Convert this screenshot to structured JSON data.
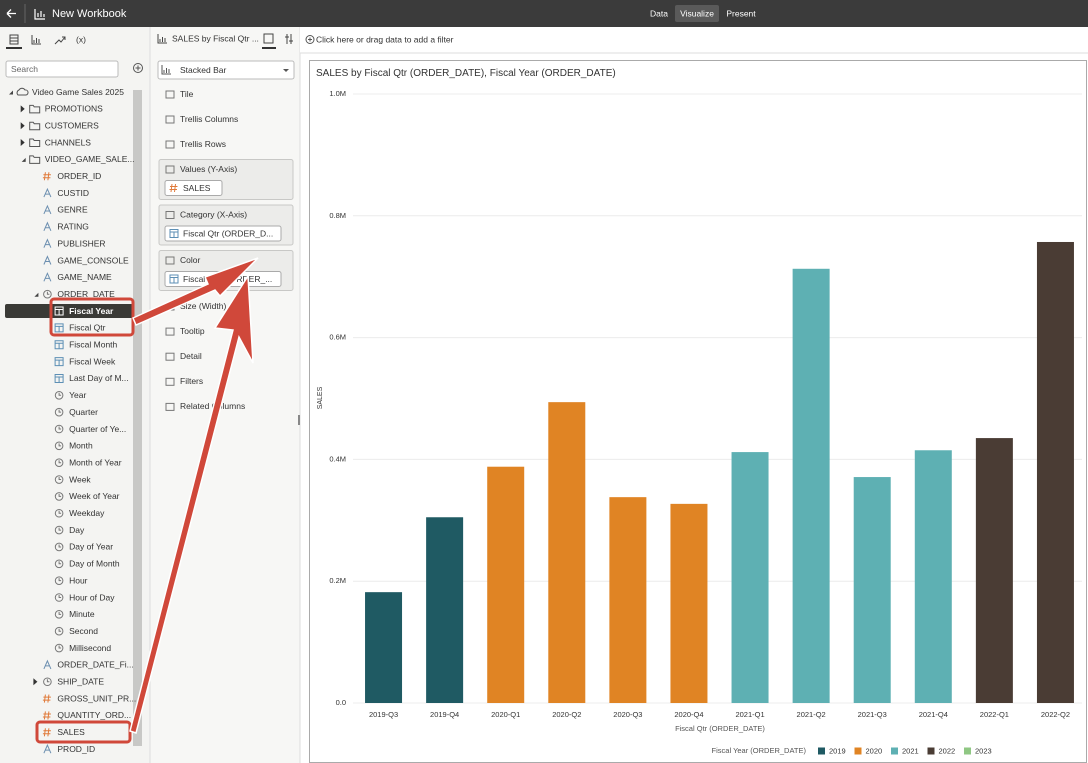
{
  "header": {
    "title": "New Workbook",
    "tabs": [
      "Data",
      "Visualize",
      "Present"
    ],
    "active_tab": 1
  },
  "data_panel": {
    "function_tab": "(x)",
    "search_placeholder": "Search",
    "tree": [
      {
        "label": "Video Game Sales 2025",
        "level": 0,
        "icon": "subject-area",
        "state": "expanded"
      },
      {
        "label": "PROMOTIONS",
        "level": 1,
        "icon": "folder",
        "state": "collapsed"
      },
      {
        "label": "CUSTOMERS",
        "level": 1,
        "icon": "folder",
        "state": "collapsed"
      },
      {
        "label": "CHANNELS",
        "level": 1,
        "icon": "folder",
        "state": "collapsed"
      },
      {
        "label": "VIDEO_GAME_SALE...",
        "level": 1,
        "icon": "folder",
        "state": "expanded"
      },
      {
        "label": "ORDER_ID",
        "level": 2,
        "icon": "measure"
      },
      {
        "label": "CUSTID",
        "level": 2,
        "icon": "attribute"
      },
      {
        "label": "GENRE",
        "level": 2,
        "icon": "attribute"
      },
      {
        "label": "RATING",
        "level": 2,
        "icon": "attribute"
      },
      {
        "label": "PUBLISHER",
        "level": 2,
        "icon": "attribute"
      },
      {
        "label": "GAME_CONSOLE",
        "level": 2,
        "icon": "attribute"
      },
      {
        "label": "GAME_NAME",
        "level": 2,
        "icon": "attribute"
      },
      {
        "label": "ORDER_DATE",
        "level": 2,
        "icon": "time",
        "state": "expanded"
      },
      {
        "label": "Fiscal Year",
        "level": 3,
        "icon": "hierarchy",
        "selected": true,
        "highlight": true
      },
      {
        "label": "Fiscal Qtr",
        "level": 3,
        "icon": "hierarchy",
        "highlight": true
      },
      {
        "label": "Fiscal Month",
        "level": 3,
        "icon": "hierarchy"
      },
      {
        "label": "Fiscal Week",
        "level": 3,
        "icon": "hierarchy"
      },
      {
        "label": "Last Day of M...",
        "level": 3,
        "icon": "hierarchy"
      },
      {
        "label": "Year",
        "level": 3,
        "icon": "time"
      },
      {
        "label": "Quarter",
        "level": 3,
        "icon": "time"
      },
      {
        "label": "Quarter of Ye...",
        "level": 3,
        "icon": "time"
      },
      {
        "label": "Month",
        "level": 3,
        "icon": "time"
      },
      {
        "label": "Month of Year",
        "level": 3,
        "icon": "time"
      },
      {
        "label": "Week",
        "level": 3,
        "icon": "time"
      },
      {
        "label": "Week of Year",
        "level": 3,
        "icon": "time"
      },
      {
        "label": "Weekday",
        "level": 3,
        "icon": "time"
      },
      {
        "label": "Day",
        "level": 3,
        "icon": "time"
      },
      {
        "label": "Day of Year",
        "level": 3,
        "icon": "time"
      },
      {
        "label": "Day of Month",
        "level": 3,
        "icon": "time"
      },
      {
        "label": "Hour",
        "level": 3,
        "icon": "time"
      },
      {
        "label": "Hour of Day",
        "level": 3,
        "icon": "time"
      },
      {
        "label": "Minute",
        "level": 3,
        "icon": "time"
      },
      {
        "label": "Second",
        "level": 3,
        "icon": "time"
      },
      {
        "label": "Millisecond",
        "level": 3,
        "icon": "time"
      },
      {
        "label": "ORDER_DATE_Fi...",
        "level": 2,
        "icon": "attribute"
      },
      {
        "label": "SHIP_DATE",
        "level": 2,
        "icon": "time",
        "state": "collapsed"
      },
      {
        "label": "GROSS_UNIT_PR...",
        "level": 2,
        "icon": "measure"
      },
      {
        "label": "QUANTITY_ORD...",
        "level": 2,
        "icon": "measure"
      },
      {
        "label": "SALES",
        "level": 2,
        "icon": "measure",
        "highlight": true
      },
      {
        "label": "PROD_ID",
        "level": 2,
        "icon": "attribute"
      }
    ]
  },
  "grammar_panel": {
    "title": "SALES by Fiscal Qtr ...",
    "chart_type": "Stacked Bar",
    "sections": [
      "Tile",
      "Trellis Columns",
      "Trellis Rows"
    ],
    "drop_targets": [
      {
        "label": "Values (Y-Axis)",
        "item": "SALES"
      },
      {
        "label": "Category (X-Axis)",
        "item": "Fiscal Qtr (ORDER_D..."
      },
      {
        "label": "Color",
        "item": "Fiscal Year (ORDER_..."
      }
    ],
    "more_sections": [
      "Size (Width)",
      "Tooltip",
      "Detail",
      "Filters",
      "Related Columns"
    ]
  },
  "filter_bar": "Click here or drag data to add a filter",
  "chart_data": {
    "type": "stacked-bar",
    "title": "SALES by Fiscal Qtr (ORDER_DATE), Fiscal Year (ORDER_DATE)",
    "xlabel": "Fiscal Qtr (ORDER_DATE)",
    "ylabel": "SALES",
    "legend_title": "Fiscal Year (ORDER_DATE)",
    "categories": [
      "2019-Q3",
      "2019-Q4",
      "2020-Q1",
      "2020-Q2",
      "2020-Q3",
      "2020-Q4",
      "2021-Q1",
      "2021-Q2",
      "2021-Q3",
      "2021-Q4",
      "2022-Q1",
      "2022-Q2"
    ],
    "series": [
      {
        "name": "2019",
        "color": "#1f5a63",
        "values": [
          182000,
          305000,
          null,
          null,
          null,
          null,
          null,
          null,
          null,
          null,
          null,
          null
        ]
      },
      {
        "name": "2020",
        "color": "#e08424",
        "values": [
          null,
          null,
          388000,
          494000,
          338000,
          327000,
          null,
          null,
          null,
          null,
          null,
          null
        ]
      },
      {
        "name": "2021",
        "color": "#5eb0b3",
        "values": [
          null,
          null,
          null,
          null,
          null,
          null,
          412000,
          713000,
          371000,
          415000,
          null,
          null
        ]
      },
      {
        "name": "2022",
        "color": "#4a3c34",
        "values": [
          null,
          null,
          null,
          null,
          null,
          null,
          null,
          null,
          null,
          null,
          435000,
          757000
        ]
      },
      {
        "name": "2023",
        "color": "#8fc783",
        "values": [
          null,
          null,
          null,
          null,
          null,
          null,
          null,
          null,
          null,
          null,
          null,
          null
        ]
      }
    ],
    "ylim": [
      0,
      1000000
    ],
    "yticks": [
      {
        "value": 0,
        "label": "0.0"
      },
      {
        "value": 200000,
        "label": "0.2M"
      },
      {
        "value": 400000,
        "label": "0.4M"
      },
      {
        "value": 600000,
        "label": "0.6M"
      },
      {
        "value": 800000,
        "label": "0.8M"
      },
      {
        "value": 1000000,
        "label": "1.0M"
      }
    ],
    "grid": true
  }
}
